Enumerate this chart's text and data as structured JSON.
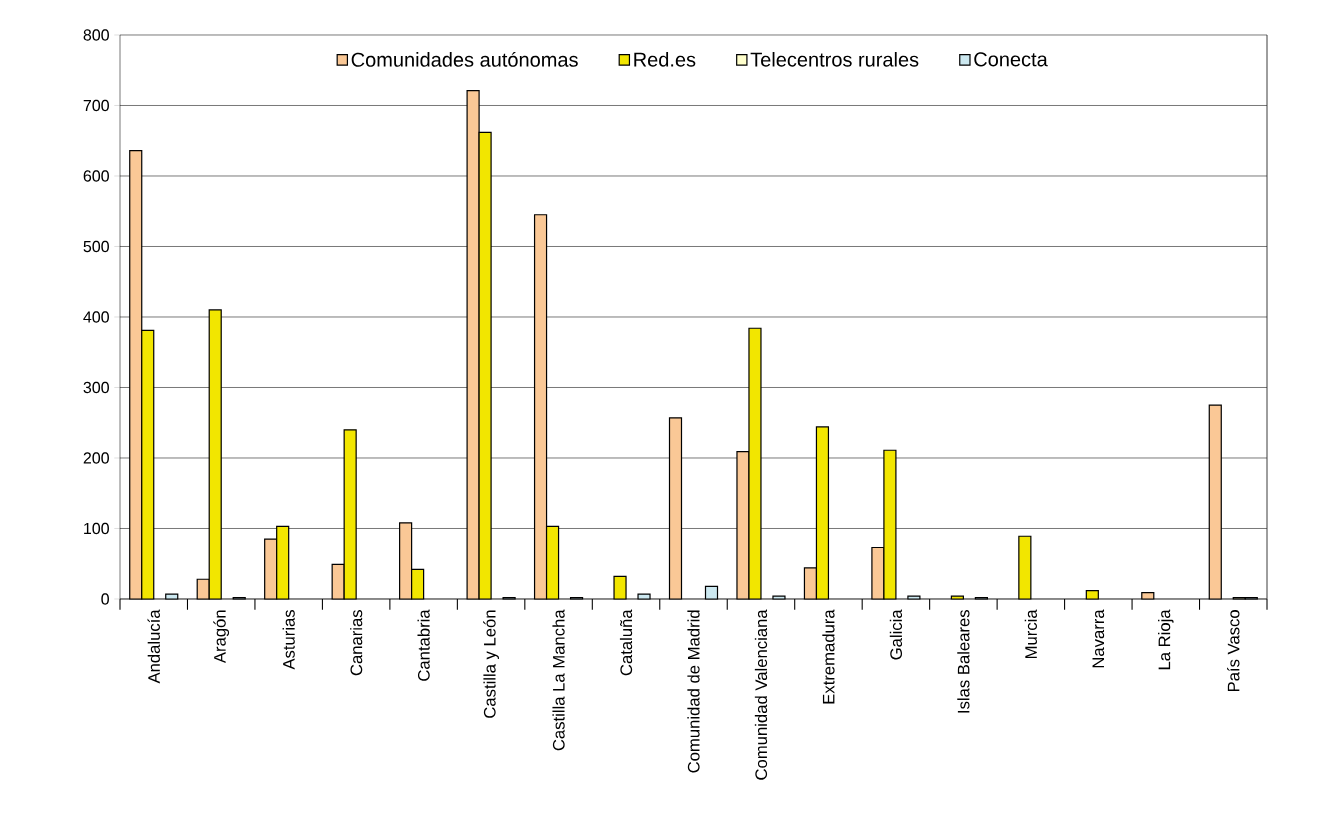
{
  "chart_data": {
    "type": "bar",
    "categories": [
      "Andalucía",
      "Aragón",
      "Asturias",
      "Canarias",
      "Cantabria",
      "Castilla y León",
      "Castilla La Mancha",
      "Cataluña",
      "Comunidad de Madrid",
      "Comunidad Valenciana",
      "Extremadura",
      "Galicia",
      "Islas Baleares",
      "Murcia",
      "Navarra",
      "La Rioja",
      "País Vasco"
    ],
    "series": [
      {
        "name": "Comunidades autónomas",
        "color": "#fac896",
        "values": [
          636,
          28,
          85,
          49,
          108,
          721,
          545,
          null,
          257,
          209,
          44,
          73,
          null,
          null,
          null,
          9,
          275
        ]
      },
      {
        "name": "Red.es",
        "color": "#f2e600",
        "values": [
          381,
          410,
          103,
          240,
          42,
          662,
          103,
          32,
          null,
          384,
          244,
          211,
          4,
          89,
          12,
          null,
          null
        ]
      },
      {
        "name": "Telecentros rurales",
        "color": "#ffffcc",
        "values": [
          null,
          null,
          null,
          null,
          null,
          null,
          null,
          null,
          null,
          null,
          null,
          null,
          null,
          null,
          null,
          null,
          2
        ]
      },
      {
        "name": "Conecta",
        "color": "#cce8f0",
        "values": [
          7,
          2,
          null,
          null,
          null,
          2,
          2,
          7,
          18,
          4,
          null,
          4,
          2,
          null,
          null,
          null,
          2
        ]
      }
    ],
    "ylim": [
      0,
      800
    ],
    "yticks": [
      0,
      100,
      200,
      300,
      400,
      500,
      600,
      700,
      800
    ],
    "grid": "y",
    "legend": "top"
  }
}
